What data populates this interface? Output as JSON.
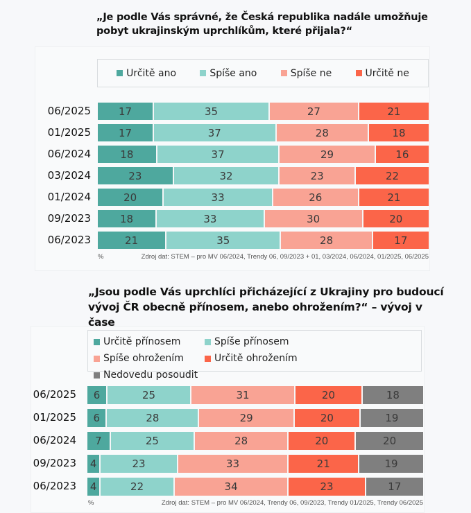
{
  "chart_data": [
    {
      "type": "bar",
      "orientation": "horizontal-stacked-100",
      "title": "„Je podle Vás správné, že Česká republika nadále umožňuje pobyt ukrajinským uprchlíkům, které přijala?“",
      "categories": [
        "06/2025",
        "01/2025",
        "06/2024",
        "03/2024",
        "01/2024",
        "09/2023",
        "06/2023"
      ],
      "series": [
        {
          "name": "Určitě ano",
          "color": "#4ea89e",
          "values": [
            17,
            17,
            18,
            23,
            20,
            18,
            21
          ]
        },
        {
          "name": "Spíše ano",
          "color": "#8ed3cb",
          "values": [
            35,
            37,
            37,
            32,
            33,
            33,
            35
          ]
        },
        {
          "name": "Spíše ne",
          "color": "#f9a394",
          "values": [
            27,
            28,
            29,
            23,
            26,
            30,
            28
          ]
        },
        {
          "name": "Určitě ne",
          "color": "#fb6549",
          "values": [
            21,
            18,
            16,
            22,
            21,
            20,
            17
          ]
        }
      ],
      "unit_label": "%",
      "source": "Zdroj dat: STEM – pro MV 06/2024, Trendy 06, 09/2023 + 01, 03/2024, 06/2024, 01/2025,  06/2025",
      "legend_position": "top"
    },
    {
      "type": "bar",
      "orientation": "horizontal-stacked-100",
      "title": "„Jsou podle Vás uprchlíci přicházející z Ukrajiny pro budoucí vývoj ČR obecně přínosem, anebo ohrožením?“ – vývoj v čase",
      "categories": [
        "06/2025",
        "01/2025",
        "06/2024",
        "09/2023",
        "06/2023"
      ],
      "series": [
        {
          "name": "Určitě přínosem",
          "color": "#4ea89e",
          "values": [
            6,
            6,
            7,
            4,
            4
          ]
        },
        {
          "name": "Spíše přínosem",
          "color": "#8ed3cb",
          "values": [
            25,
            28,
            25,
            23,
            22
          ]
        },
        {
          "name": "Spíše ohrožením",
          "color": "#f9a394",
          "values": [
            31,
            29,
            28,
            33,
            34
          ]
        },
        {
          "name": "Určitě ohrožením",
          "color": "#fb6549",
          "values": [
            20,
            20,
            20,
            21,
            23
          ]
        },
        {
          "name": "Nedovedu posoudit",
          "color": "#7f7f7f",
          "values": [
            18,
            19,
            20,
            19,
            17
          ]
        }
      ],
      "unit_label": "%",
      "source": "Zdroj dat: STEM – pro MV 06/2024, Trendy 06, 09/2023, Trendy 01/2025, Trendy 06/2025",
      "legend_position": "top"
    }
  ]
}
